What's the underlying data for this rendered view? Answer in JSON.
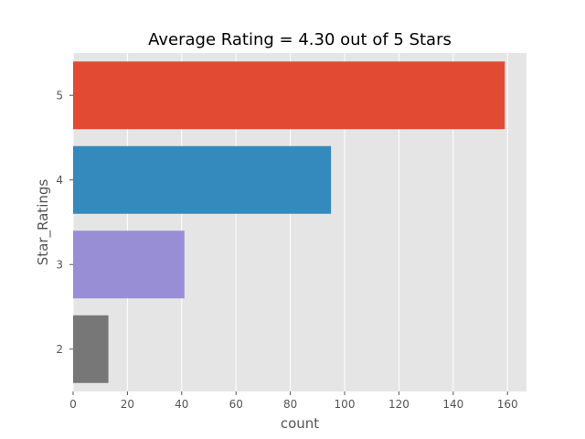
{
  "chart_data": {
    "type": "bar",
    "orientation": "horizontal",
    "title": "Average Rating  = 4.30 out of 5 Stars",
    "xlabel": "count",
    "ylabel": "Star_Ratings",
    "categories": [
      "5",
      "4",
      "3",
      "2"
    ],
    "values": [
      159,
      95,
      41,
      13
    ],
    "colors": [
      "#E24A33",
      "#348ABD",
      "#988ED5",
      "#777777"
    ],
    "xlim": [
      0,
      167
    ],
    "xticks": [
      0,
      20,
      40,
      60,
      80,
      100,
      120,
      140,
      160
    ],
    "grid": true,
    "style": "ggplot"
  }
}
